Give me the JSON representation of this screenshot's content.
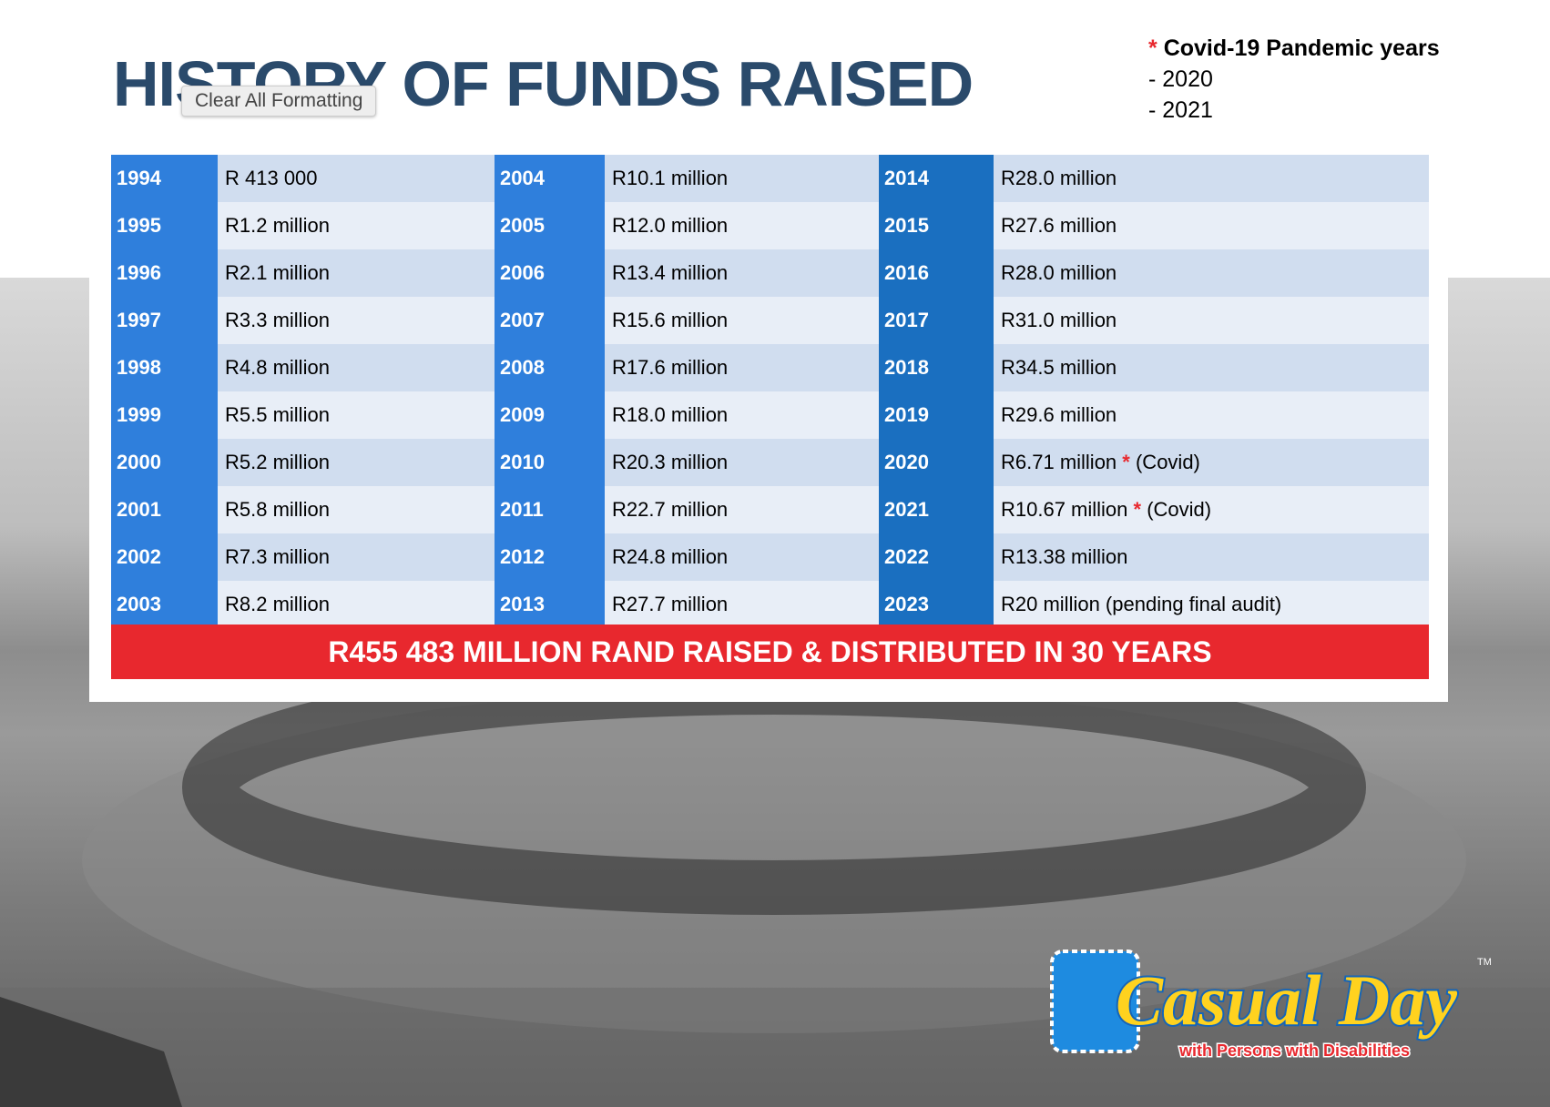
{
  "header": {
    "title": "HISTORY OF FUNDS RAISED",
    "tooltip": "Clear All Formatting"
  },
  "note": {
    "mark": "*",
    "title": "Covid-19 Pandemic years",
    "items": [
      "- 2020",
      "- 2021"
    ]
  },
  "table": {
    "columns": [
      {
        "years": [
          "1994",
          "1995",
          "1996",
          "1997",
          "1998",
          "1999",
          "2000",
          "2001",
          "2002",
          "2003"
        ],
        "amounts": [
          "R 413 000",
          "R1.2 million",
          "R2.1 million",
          "R3.3 million",
          "R4.8 million",
          "R5.5 million",
          "R5.2 million",
          "R5.8 million",
          "R7.3 million",
          "R8.2 million"
        ]
      },
      {
        "years": [
          "2004",
          "2005",
          "2006",
          "2007",
          "2008",
          "2009",
          "2010",
          "2011",
          "2012",
          "2013"
        ],
        "amounts": [
          "R10.1 million",
          "R12.0 million",
          "R13.4 million",
          "R15.6 million",
          "R17.6 million",
          "R18.0 million",
          "R20.3 million",
          "R22.7 million",
          "R24.8 million",
          "R27.7 million"
        ]
      },
      {
        "years": [
          "2014",
          "2015",
          "2016",
          "2017",
          "2018",
          "2019",
          "2020",
          "2021",
          "2022",
          "2023"
        ],
        "amounts": [
          "R28.0 million",
          "R27.6 million",
          "R28.0 million",
          "R31.0 million",
          "R34.5 million",
          "R29.6 million",
          {
            "text": "R6.71 million",
            "mark": "*",
            "note": "(Covid)"
          },
          {
            "text": "R10.67 million",
            "mark": "*",
            "note": "(Covid)"
          },
          "R13.38 million",
          "R20 million (pending final audit)"
        ]
      }
    ],
    "total": "R455 483 MILLION RAND RAISED & DISTRIBUTED IN 30 YEARS"
  },
  "logo": {
    "name": "Casual Day",
    "tm": "TM",
    "tagline": "with Persons with Disabilities"
  }
}
